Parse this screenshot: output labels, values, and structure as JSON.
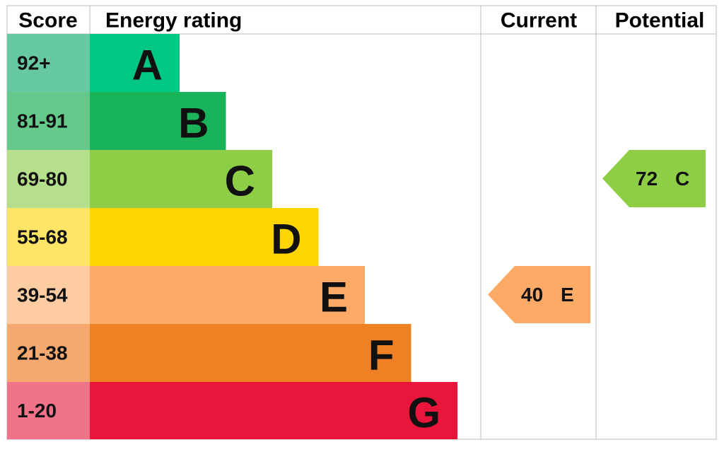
{
  "headers": {
    "score": "Score",
    "rating": "Energy rating",
    "current": "Current",
    "potential": "Potential"
  },
  "bands": [
    {
      "score": "92+",
      "letter": "A",
      "color": "#00c781",
      "score_color": "#66c9a3"
    },
    {
      "score": "81-91",
      "letter": "B",
      "color": "#19b459",
      "score_color": "#66c98c"
    },
    {
      "score": "69-80",
      "letter": "C",
      "color": "#8dce46",
      "score_color": "#b6df8b"
    },
    {
      "score": "55-68",
      "letter": "D",
      "color": "#ffd500",
      "score_color": "#ffe566"
    },
    {
      "score": "39-54",
      "letter": "E",
      "color": "#fcaa65",
      "score_color": "#fdcca3"
    },
    {
      "score": "21-38",
      "letter": "F",
      "color": "#ef8023",
      "score_color": "#f5a86f"
    },
    {
      "score": "1-20",
      "letter": "G",
      "color": "#e9153b",
      "score_color": "#f07389"
    }
  ],
  "current": {
    "value": 40,
    "letter": "E"
  },
  "potential": {
    "value": 72,
    "letter": "C"
  }
}
